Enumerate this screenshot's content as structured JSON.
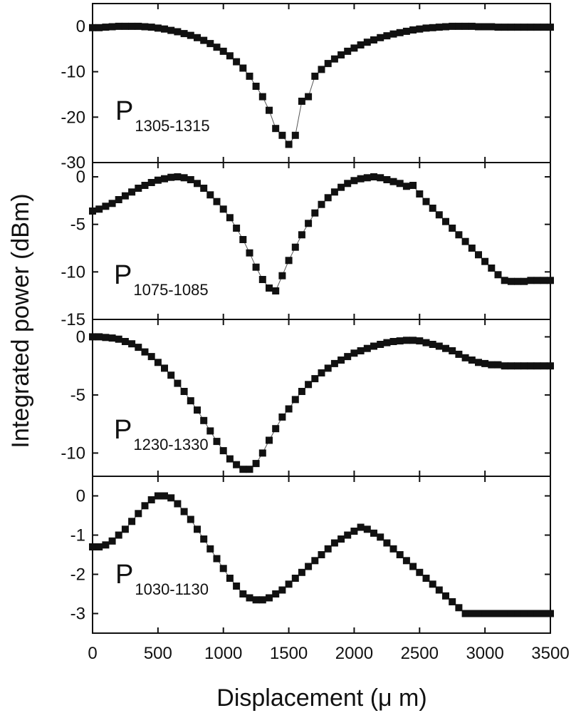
{
  "chart_data": {
    "type": "scatter",
    "marker": "square",
    "marker_color": "#111111",
    "line_color": "#555555",
    "xlabel": "Displacement (μ m)",
    "ylabel": "Integrated power (dBm)",
    "xlim": [
      0,
      3500
    ],
    "xticks": [
      0,
      500,
      1000,
      1500,
      2000,
      2500,
      3000,
      3500
    ],
    "x": [
      0,
      50,
      100,
      150,
      200,
      250,
      300,
      350,
      400,
      450,
      500,
      550,
      600,
      650,
      700,
      750,
      800,
      850,
      900,
      950,
      1000,
      1050,
      1100,
      1150,
      1200,
      1250,
      1300,
      1350,
      1400,
      1450,
      1500,
      1550,
      1600,
      1650,
      1700,
      1750,
      1800,
      1850,
      1900,
      1950,
      2000,
      2050,
      2100,
      2150,
      2200,
      2250,
      2300,
      2350,
      2400,
      2450,
      2500,
      2550,
      2600,
      2650,
      2700,
      2750,
      2800,
      2850,
      2900,
      2950,
      3000,
      3050,
      3100,
      3150,
      3200,
      3250,
      3300,
      3350,
      3400,
      3450,
      3500
    ],
    "panels": [
      {
        "label_main": "P",
        "label_sub": "1305-1315",
        "ylim": [
          -30,
          5
        ],
        "yticks": [
          0,
          -10,
          -20,
          -30
        ],
        "y": [
          -0.3,
          -0.3,
          -0.2,
          -0.1,
          0.0,
          0.0,
          0.0,
          0.0,
          -0.1,
          -0.2,
          -0.4,
          -0.6,
          -0.9,
          -1.2,
          -1.6,
          -2.0,
          -2.5,
          -3.1,
          -3.8,
          -4.6,
          -5.5,
          -6.5,
          -7.8,
          -9.2,
          -11.0,
          -13.2,
          -15.5,
          -18.5,
          -22.5,
          -24.0,
          -26.0,
          -24.0,
          -16.5,
          -15.5,
          -11.0,
          -9.5,
          -8.2,
          -7.2,
          -6.3,
          -5.5,
          -4.8,
          -4.1,
          -3.5,
          -3.0,
          -2.5,
          -2.1,
          -1.7,
          -1.4,
          -1.1,
          -0.8,
          -0.6,
          -0.4,
          -0.3,
          -0.2,
          -0.1,
          0.0,
          0.0,
          0.0,
          0.0,
          -0.1,
          -0.1,
          -0.1,
          -0.2,
          -0.2,
          -0.2,
          -0.2,
          -0.2,
          -0.2,
          -0.2,
          -0.2,
          -0.2
        ]
      },
      {
        "label_main": "P",
        "label_sub": "1075-1085",
        "ylim": [
          -15,
          1.5
        ],
        "yticks": [
          0,
          -5,
          -10,
          -15
        ],
        "y": [
          -3.6,
          -3.4,
          -3.1,
          -2.8,
          -2.4,
          -2.0,
          -1.6,
          -1.2,
          -0.9,
          -0.6,
          -0.35,
          -0.2,
          -0.05,
          0.0,
          -0.1,
          -0.3,
          -0.7,
          -1.2,
          -1.9,
          -2.6,
          -3.4,
          -4.3,
          -5.4,
          -6.6,
          -8.0,
          -9.5,
          -10.8,
          -11.7,
          -12.0,
          -10.4,
          -8.8,
          -7.4,
          -6.1,
          -4.9,
          -3.8,
          -2.9,
          -2.2,
          -1.6,
          -1.1,
          -0.7,
          -0.4,
          -0.2,
          -0.1,
          0.0,
          -0.1,
          -0.3,
          -0.5,
          -0.7,
          -1.0,
          -0.9,
          -1.8,
          -2.6,
          -3.3,
          -4.0,
          -4.7,
          -5.4,
          -6.1,
          -6.8,
          -7.5,
          -8.2,
          -8.9,
          -9.6,
          -10.3,
          -10.9,
          -11.0,
          -11.0,
          -11.0,
          -10.9,
          -10.9,
          -10.9,
          -10.9
        ]
      },
      {
        "label_main": "P",
        "label_sub": "1230-1330",
        "ylim": [
          -12,
          1.5
        ],
        "yticks": [
          0,
          -5,
          -10
        ],
        "y": [
          0.0,
          0.0,
          -0.05,
          -0.1,
          -0.2,
          -0.4,
          -0.6,
          -0.9,
          -1.3,
          -1.7,
          -2.2,
          -2.7,
          -3.3,
          -4.0,
          -4.7,
          -5.5,
          -6.3,
          -7.2,
          -8.1,
          -9.0,
          -9.8,
          -10.5,
          -11.0,
          -11.4,
          -11.4,
          -10.9,
          -10.0,
          -8.9,
          -7.9,
          -6.9,
          -6.2,
          -5.4,
          -4.7,
          -4.1,
          -3.6,
          -3.1,
          -2.7,
          -2.3,
          -2.0,
          -1.7,
          -1.4,
          -1.2,
          -1.0,
          -0.8,
          -0.65,
          -0.5,
          -0.4,
          -0.35,
          -0.3,
          -0.3,
          -0.35,
          -0.5,
          -0.65,
          -0.8,
          -1.0,
          -1.2,
          -1.5,
          -1.8,
          -2.0,
          -2.2,
          -2.3,
          -2.4,
          -2.4,
          -2.5,
          -2.5,
          -2.5,
          -2.5,
          -2.5,
          -2.5,
          -2.5,
          -2.5
        ]
      },
      {
        "label_main": "P",
        "label_sub": "1030-1130",
        "ylim": [
          -3.5,
          0.5
        ],
        "yticks": [
          0,
          -1,
          -2,
          -3
        ],
        "y": [
          -1.3,
          -1.3,
          -1.25,
          -1.15,
          -1.0,
          -0.85,
          -0.65,
          -0.45,
          -0.25,
          -0.1,
          0.0,
          0.0,
          -0.05,
          -0.2,
          -0.4,
          -0.6,
          -0.85,
          -1.1,
          -1.35,
          -1.6,
          -1.85,
          -2.1,
          -2.3,
          -2.5,
          -2.6,
          -2.65,
          -2.65,
          -2.6,
          -2.5,
          -2.4,
          -2.25,
          -2.1,
          -1.95,
          -1.8,
          -1.65,
          -1.5,
          -1.35,
          -1.2,
          -1.1,
          -1.0,
          -0.9,
          -0.8,
          -0.85,
          -0.95,
          -1.05,
          -1.2,
          -1.35,
          -1.5,
          -1.65,
          -1.8,
          -1.95,
          -2.1,
          -2.25,
          -2.4,
          -2.55,
          -2.7,
          -2.85,
          -3.0,
          -3.0,
          -3.0,
          -3.0,
          -3.0,
          -3.0,
          -3.0,
          -3.0,
          -3.0,
          -3.0,
          -3.0,
          -3.0,
          -3.0,
          -3.0
        ]
      }
    ]
  }
}
